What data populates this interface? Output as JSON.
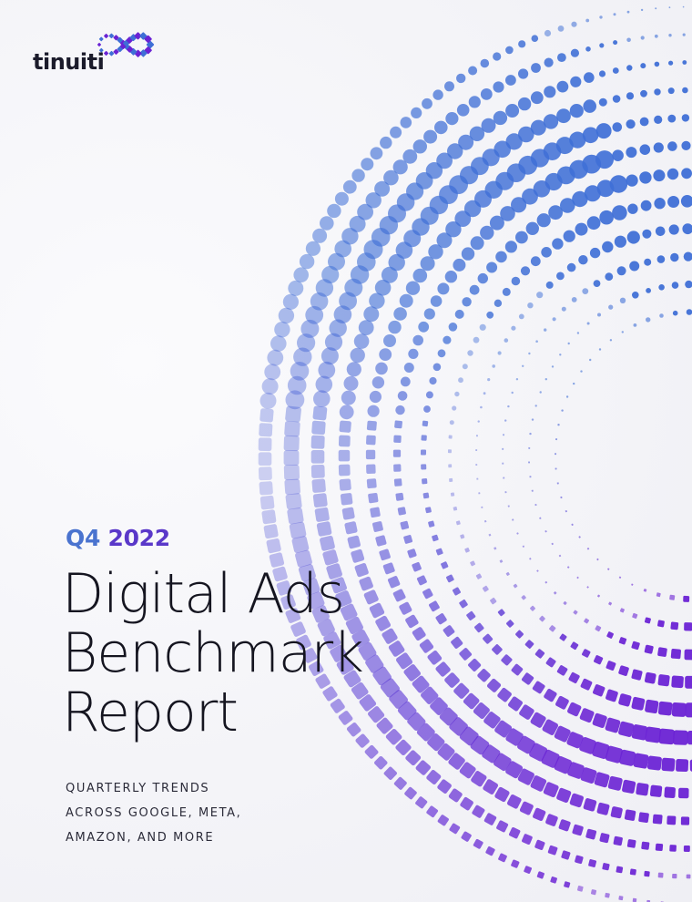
{
  "brand": {
    "logo_text": "tinuiti",
    "colors": {
      "blue": "#3f6fd6",
      "purple": "#6a22d4",
      "quarter_blue": "#4a73cf",
      "year_purple": "#5a38c9",
      "ink": "#151520"
    }
  },
  "cover": {
    "quarter": "Q4",
    "year": "2022",
    "title_lines": [
      "Digital Ads",
      "Benchmark",
      "Report"
    ],
    "subtitle_lines": [
      "QUARTERLY TRENDS",
      "ACROSS GOOGLE, META,",
      "AMAZON, AND MORE"
    ]
  },
  "artwork": {
    "icon": "halftone-dot-swirl",
    "gradient_start": "#3f6fd6",
    "gradient_end": "#6a22d4"
  }
}
